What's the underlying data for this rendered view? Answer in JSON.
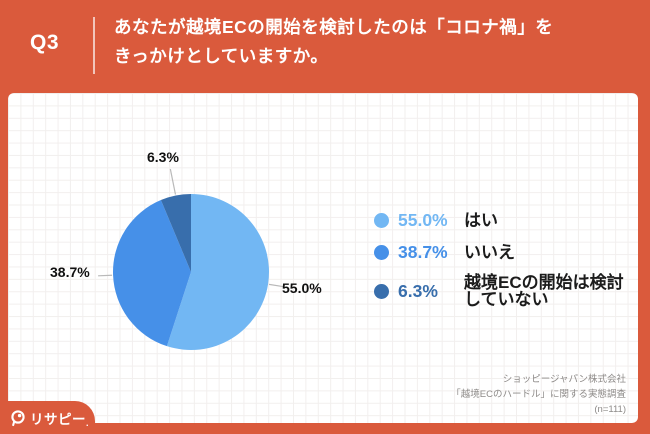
{
  "header": {
    "question_number": "Q3",
    "question_text": "あなたが越境ECの開始を検討したのは「コロナ禍」を\nきっかけとしていますか。"
  },
  "chart_data": {
    "type": "pie",
    "title": "あなたが越境ECの開始を検討したのは「コロナ禍」をきっかけとしていますか。",
    "start_angle": "12-oclock-clockwise",
    "legend_position": "right",
    "labels_outside": true,
    "slices": [
      {
        "label": "はい",
        "value": 55.0,
        "display": "55.0%",
        "color": "#72B7F3"
      },
      {
        "label": "いいえ",
        "value": 38.7,
        "display": "38.7%",
        "color": "#4690E8"
      },
      {
        "label": "越境ECの開始は検討していない",
        "value": 6.3,
        "display": "6.3%",
        "color": "#386EAC"
      }
    ]
  },
  "footer": {
    "source_lines": [
      "ショッピージャパン株式会社",
      "「越境ECのハードル」に関する実態調査",
      "(n=111)"
    ]
  },
  "logo": {
    "text": "リサピー",
    "suffix": "."
  },
  "colors": {
    "accent_orange": "#DA5A3C",
    "callout_text": "#111111",
    "leader_line": "#B9B9B9",
    "footer_gray": "#8E8B89"
  }
}
